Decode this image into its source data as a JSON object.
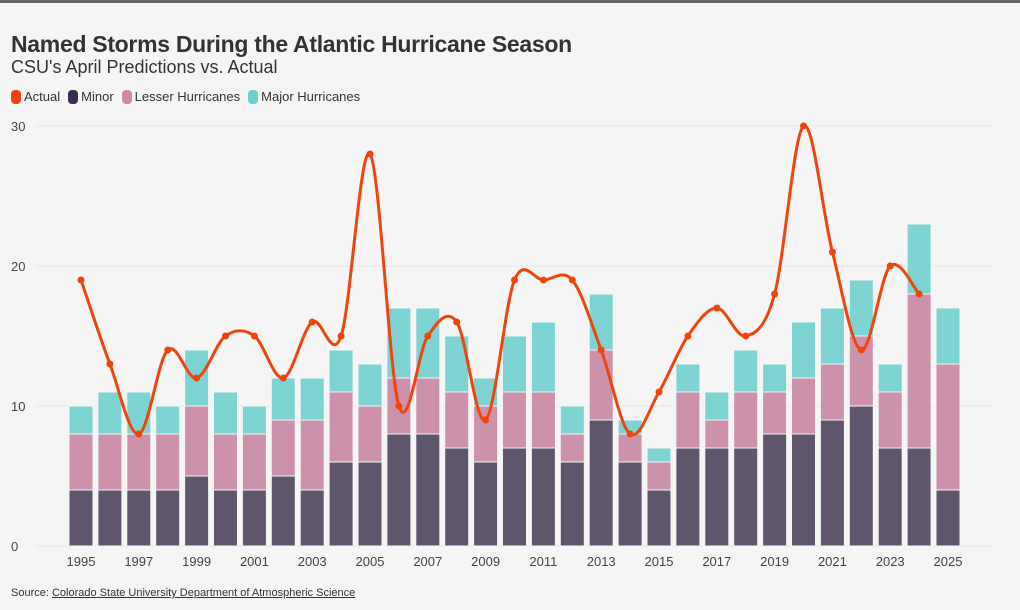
{
  "header": {
    "title": "Named Storms During the Atlantic Hurricane Season",
    "subtitle": "CSU's April Predictions vs. Actual"
  },
  "legend": [
    {
      "label": "Actual",
      "color": "#f0440e"
    },
    {
      "label": "Minor",
      "color": "#3b2d4d"
    },
    {
      "label": "Lesser Hurricanes",
      "color": "#cc8aa9"
    },
    {
      "label": "Major Hurricanes",
      "color": "#6ccfce"
    }
  ],
  "footer": {
    "prefix": "Source:",
    "link_text": "Colorado State University Department of Atmospheric Science"
  },
  "colors": {
    "actual": "#f0440e",
    "minor": "#5f566e",
    "lesser": "#cc91ab",
    "major": "#7dd3d2",
    "grid": "#e8e8e8"
  },
  "chart_data": {
    "type": "bar",
    "stacked": true,
    "title": "Named Storms During the Atlantic Hurricane Season",
    "subtitle": "CSU's April Predictions vs. Actual",
    "xlabel": "",
    "ylabel": "",
    "ylim": [
      0,
      30
    ],
    "yticks": [
      0,
      10,
      20,
      30
    ],
    "grid": true,
    "legend_position": "top-left",
    "categories": [
      "1995",
      "1996",
      "1997",
      "1998",
      "1999",
      "2000",
      "2001",
      "2002",
      "2003",
      "2004",
      "2005",
      "2006",
      "2007",
      "2008",
      "2009",
      "2010",
      "2011",
      "2012",
      "2013",
      "2014",
      "2015",
      "2016",
      "2017",
      "2018",
      "2019",
      "2020",
      "2021",
      "2022",
      "2023",
      "2024",
      "2025"
    ],
    "xtick_labels": [
      "1995",
      "1997",
      "1999",
      "2001",
      "2003",
      "2005",
      "2007",
      "2009",
      "2011",
      "2013",
      "2015",
      "2017",
      "2019",
      "2021",
      "2023",
      "2025"
    ],
    "series": [
      {
        "name": "Minor",
        "type": "bar",
        "values": [
          4,
          4,
          4,
          4,
          5,
          4,
          4,
          5,
          4,
          6,
          6,
          8,
          8,
          7,
          6,
          7,
          7,
          6,
          9,
          6,
          4,
          7,
          7,
          7,
          8,
          8,
          9,
          10,
          7,
          7,
          4
        ]
      },
      {
        "name": "Lesser Hurricanes",
        "type": "bar",
        "values": [
          4,
          4,
          4,
          4,
          5,
          4,
          4,
          4,
          5,
          5,
          4,
          4,
          4,
          4,
          4,
          4,
          4,
          2,
          5,
          2,
          2,
          4,
          2,
          4,
          3,
          4,
          4,
          5,
          4,
          11,
          9
        ]
      },
      {
        "name": "Major Hurricanes",
        "type": "bar",
        "values": [
          2,
          3,
          3,
          2,
          4,
          3,
          2,
          3,
          3,
          3,
          3,
          5,
          5,
          4,
          2,
          4,
          5,
          2,
          4,
          1,
          1,
          2,
          2,
          3,
          2,
          4,
          4,
          4,
          2,
          5,
          4
        ]
      },
      {
        "name": "Actual",
        "type": "line",
        "values": [
          19,
          13,
          8,
          14,
          12,
          15,
          15,
          12,
          16,
          15,
          28,
          10,
          15,
          16,
          9,
          19,
          19,
          19,
          14,
          8,
          11,
          15,
          17,
          15,
          18,
          30,
          21,
          14,
          20,
          18,
          null
        ]
      }
    ]
  }
}
